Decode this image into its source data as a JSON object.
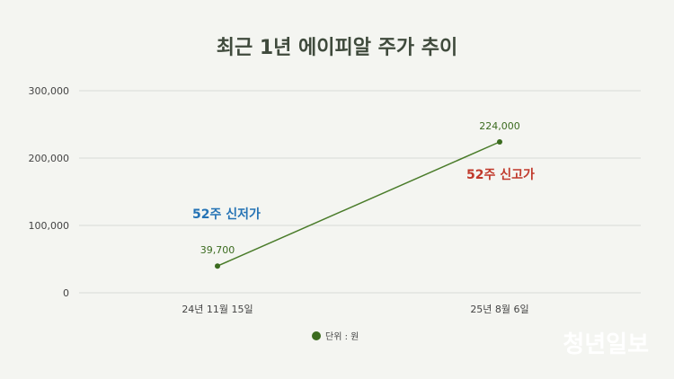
{
  "chart_data": {
    "type": "line",
    "title": "최근 1년 에이피알 주가 추이",
    "categories": [
      "24년 11월 15일",
      "25년 8월 6일"
    ],
    "series": [
      {
        "values": [
          39700,
          224000
        ],
        "labels": [
          "39,700",
          "224,000"
        ],
        "color": "#4a7c2a"
      }
    ],
    "yticks": [
      "0",
      "100,000",
      "200,000",
      "300,000"
    ],
    "ylim": [
      0,
      300000
    ],
    "grid": true,
    "legend": {
      "text": "단위 : 원",
      "placement": "bottom-center",
      "color": "#3b6b1f"
    },
    "annotations": [
      {
        "text": "52주 신저가",
        "color": "#2573b5"
      },
      {
        "text": "52주 신고가",
        "color": "#c0392b"
      }
    ]
  },
  "watermark": "청년일보"
}
